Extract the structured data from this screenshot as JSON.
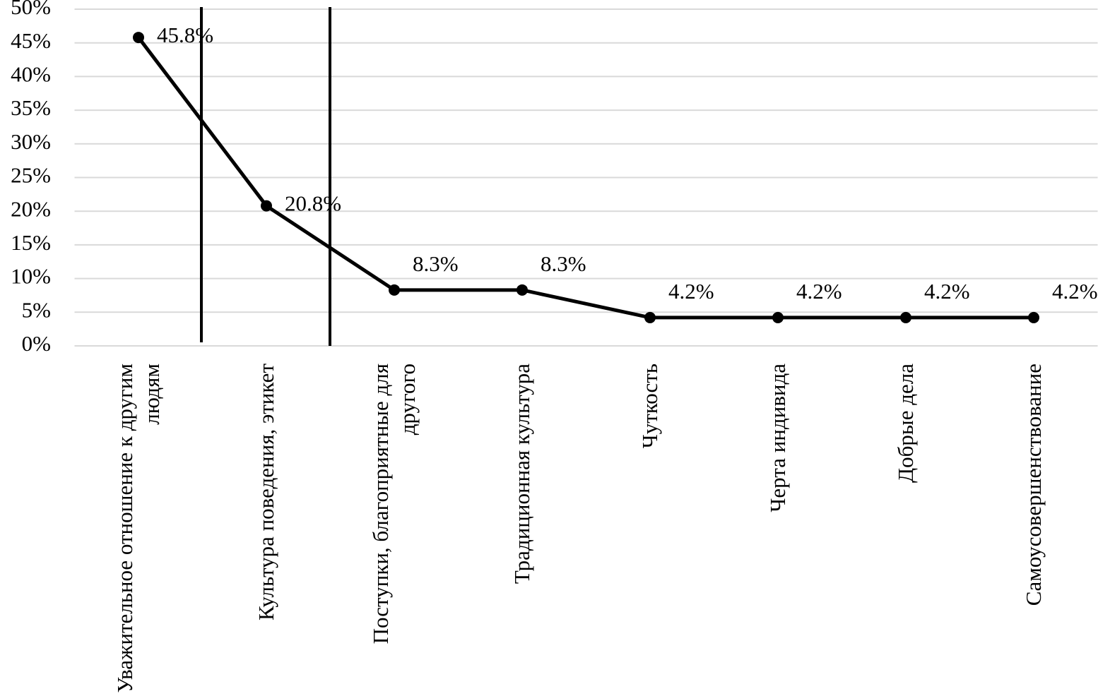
{
  "chart_data": {
    "type": "line",
    "categories": [
      "Уважительное отношение к другим людям",
      "Культура поведения, этикет",
      "Поступки, благоприятные для другого",
      "Традиционная культура",
      "Чуткость",
      "Черта индивида",
      "Добрые дела",
      "Самоусовершенствование"
    ],
    "values": [
      45.8,
      20.8,
      8.3,
      8.3,
      4.2,
      4.2,
      4.2,
      4.2
    ],
    "value_labels": [
      "45.8%",
      "20.8%",
      "8.3%",
      "8.3%",
      "4.2%",
      "4.2%",
      "4.2%",
      "4.2%"
    ],
    "color": "#000000",
    "ylim": [
      0,
      50
    ],
    "yticks": [
      {
        "value": 0,
        "label": "0%"
      },
      {
        "value": 5,
        "label": "5%"
      },
      {
        "value": 10,
        "label": "10%"
      },
      {
        "value": 15,
        "label": "15%"
      },
      {
        "value": 20,
        "label": "20%"
      },
      {
        "value": 25,
        "label": "25%"
      },
      {
        "value": 30,
        "label": "30%"
      },
      {
        "value": 35,
        "label": "35%"
      },
      {
        "value": 40,
        "label": "40%"
      },
      {
        "value": 45,
        "label": "45%"
      },
      {
        "value": 50,
        "label": "50%"
      }
    ],
    "grid": true
  }
}
